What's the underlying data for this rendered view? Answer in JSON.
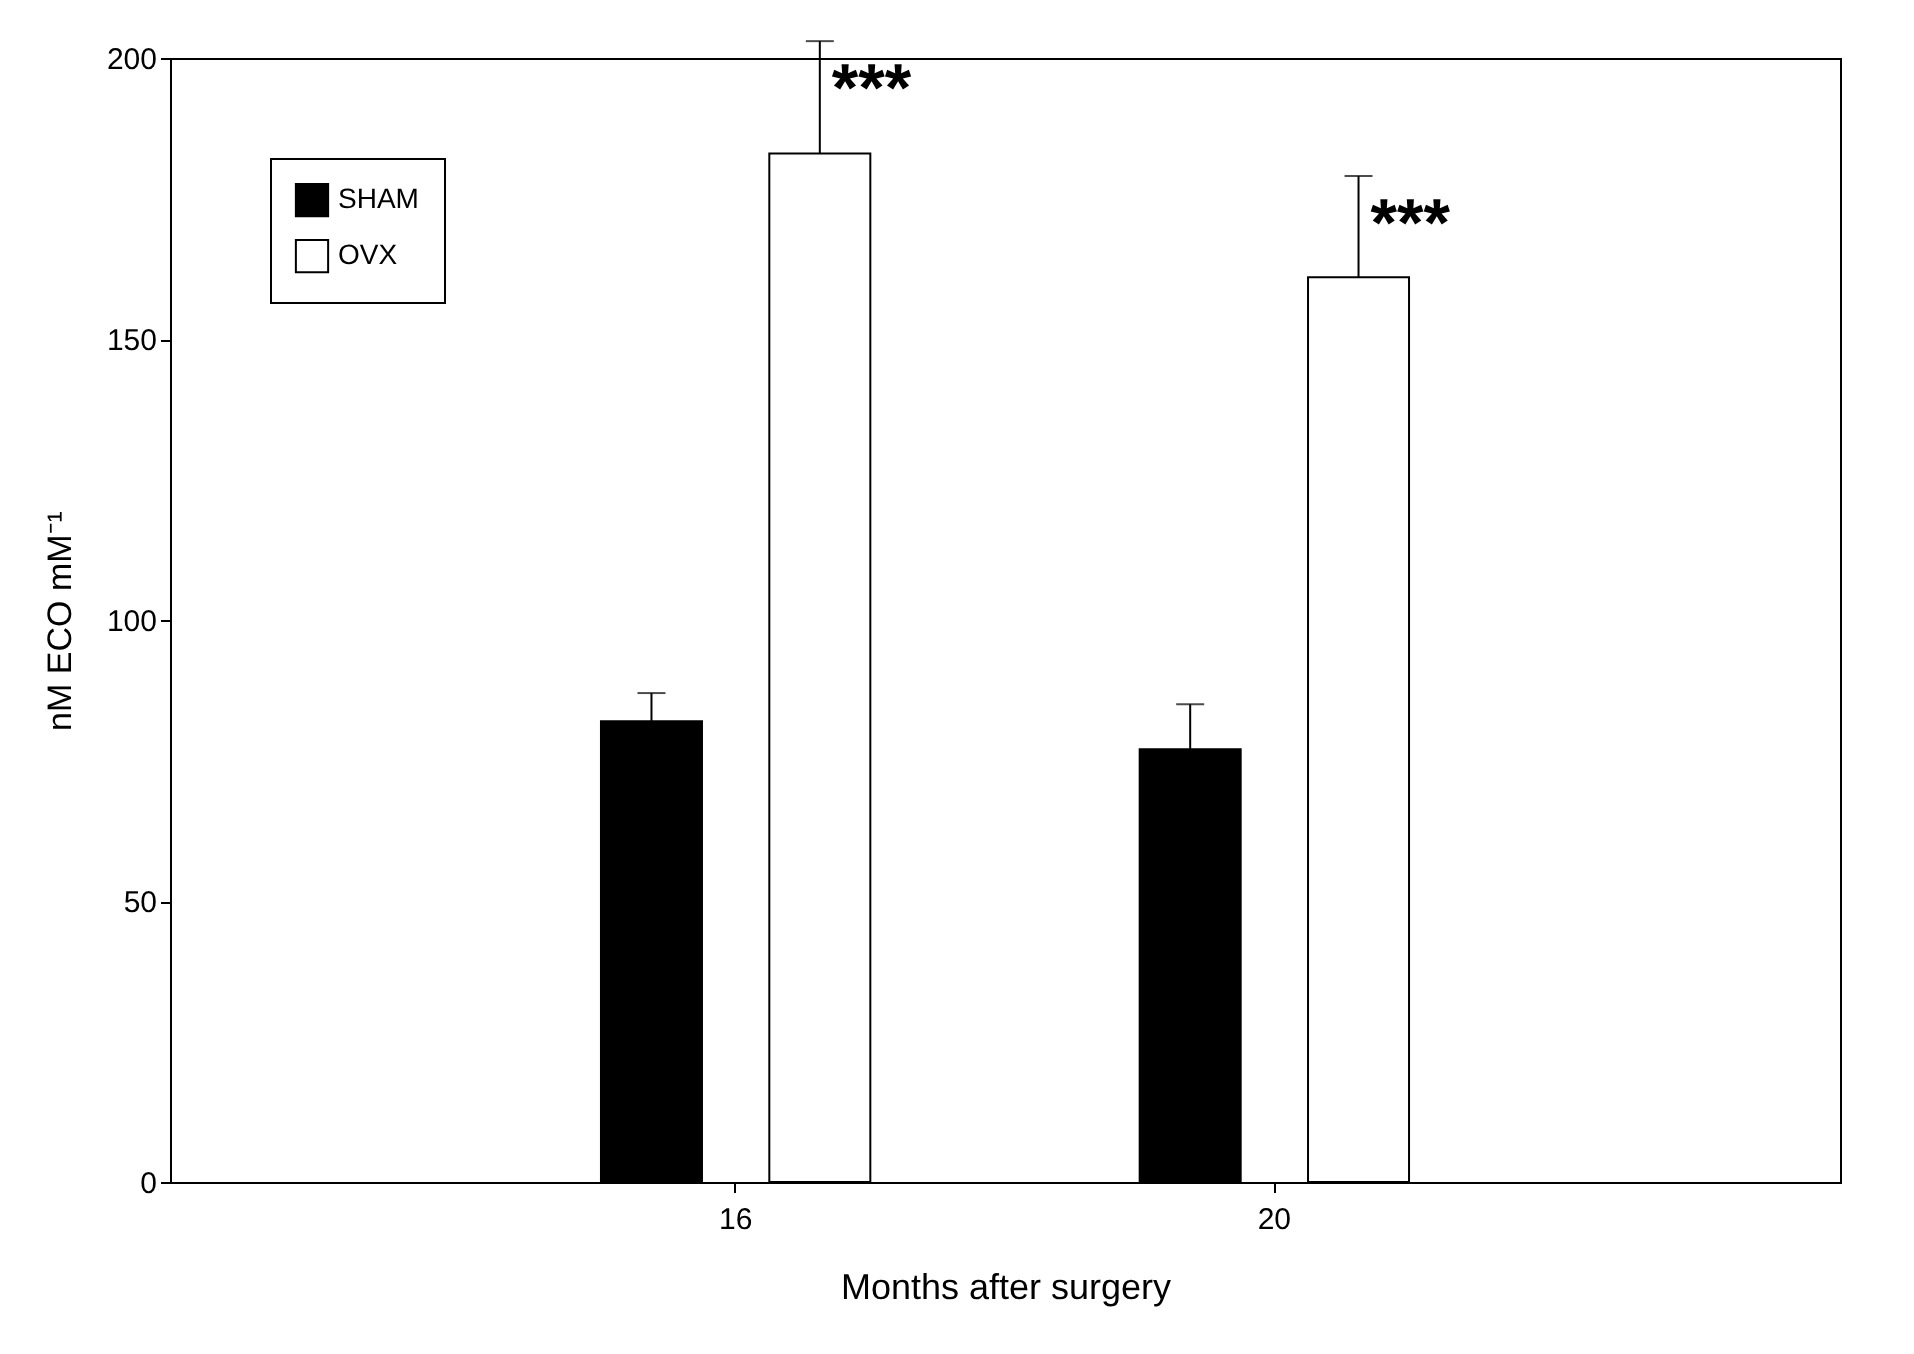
{
  "chart_data": {
    "type": "bar",
    "xlabel": "Months after surgery",
    "ylabel": "nM ECO mM⁻¹",
    "categories": [
      "16",
      "20"
    ],
    "series": [
      {
        "name": "SHAM",
        "color": "#000000",
        "values": [
          82,
          77
        ],
        "errors": [
          [
            82,
            87
          ],
          [
            77,
            85
          ]
        ]
      },
      {
        "name": "OVX",
        "color": "#ffffff",
        "values": [
          183,
          161
        ],
        "errors": [
          [
            183,
            203
          ],
          [
            161,
            179
          ]
        ]
      }
    ],
    "ylim": [
      0,
      200
    ],
    "yticks": [
      0,
      50,
      100,
      150,
      200
    ],
    "grid": false,
    "legend": "top left",
    "annotations": [
      "***",
      "***"
    ]
  }
}
